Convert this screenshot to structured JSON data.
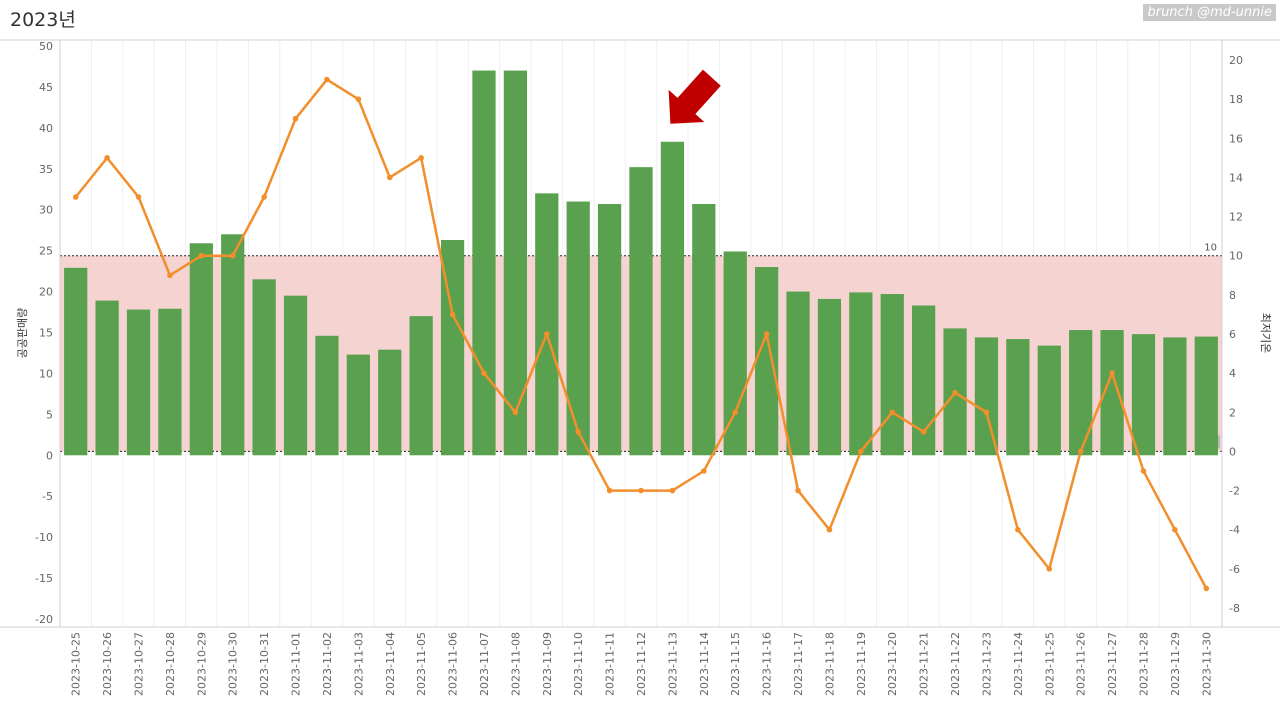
{
  "title": "2023년",
  "watermark": "brunch @md-unnie",
  "chart_data": {
    "type": "bar",
    "categories": [
      "2023-10-25",
      "2023-10-26",
      "2023-10-27",
      "2023-10-28",
      "2023-10-29",
      "2023-10-30",
      "2023-10-31",
      "2023-11-01",
      "2023-11-02",
      "2023-11-03",
      "2023-11-04",
      "2023-11-05",
      "2023-11-06",
      "2023-11-07",
      "2023-11-08",
      "2023-11-09",
      "2023-11-10",
      "2023-11-11",
      "2023-11-12",
      "2023-11-13",
      "2023-11-14",
      "2023-11-15",
      "2023-11-16",
      "2023-11-17",
      "2023-11-18",
      "2023-11-19",
      "2023-11-20",
      "2023-11-21",
      "2023-11-22",
      "2023-11-23",
      "2023-11-24",
      "2023-11-25",
      "2023-11-26",
      "2023-11-27",
      "2023-11-28",
      "2023-11-29",
      "2023-11-30"
    ],
    "series": [
      {
        "name": "공공판매량",
        "type": "bar",
        "axis": "left",
        "color": "#59a14f",
        "values": [
          22.9,
          18.9,
          17.8,
          17.9,
          25.9,
          27,
          21.5,
          19.5,
          14.6,
          12.3,
          12.9,
          17,
          26.3,
          47,
          47,
          32,
          31,
          30.7,
          35.2,
          38.3,
          30.7,
          24.9,
          23,
          20,
          19.1,
          19.9,
          19.7,
          18.3,
          15.5,
          14.4,
          14.2,
          13.4,
          15.3,
          15.3,
          14.8,
          14.4,
          14.5
        ]
      },
      {
        "name": "최저기온",
        "type": "line",
        "axis": "right",
        "color": "#f28e2b",
        "values": [
          13,
          15,
          13,
          9,
          10,
          10,
          13,
          17,
          19,
          18,
          14,
          15,
          7,
          4,
          2,
          6,
          1,
          -2,
          -2,
          -2,
          -1,
          2,
          6,
          -2,
          -4,
          0,
          2,
          1,
          3,
          2,
          -4,
          -6,
          0,
          4,
          -1,
          -4,
          -7
        ]
      }
    ],
    "ylabel_left": "공공판매량",
    "ylabel_right": "최저기온",
    "ylim_left": [
      -20,
      50
    ],
    "yticks_left": [
      -20,
      -15,
      -10,
      -5,
      0,
      5,
      10,
      15,
      20,
      25,
      30,
      35,
      40,
      45,
      50
    ],
    "ylim_right": [
      -8,
      20
    ],
    "yticks_right": [
      -8,
      -6,
      -4,
      -2,
      0,
      2,
      4,
      6,
      8,
      10,
      12,
      14,
      16,
      18,
      20
    ],
    "reference_band": {
      "from": 0,
      "to": 10,
      "axis": "right",
      "color": "#f4d3d0",
      "labels": [
        "0",
        "10"
      ]
    },
    "highlight": {
      "category": "2023-11-13",
      "marker": "red arrow pointing down-right"
    },
    "grid": {
      "vertical": true,
      "horizontal": false
    }
  }
}
